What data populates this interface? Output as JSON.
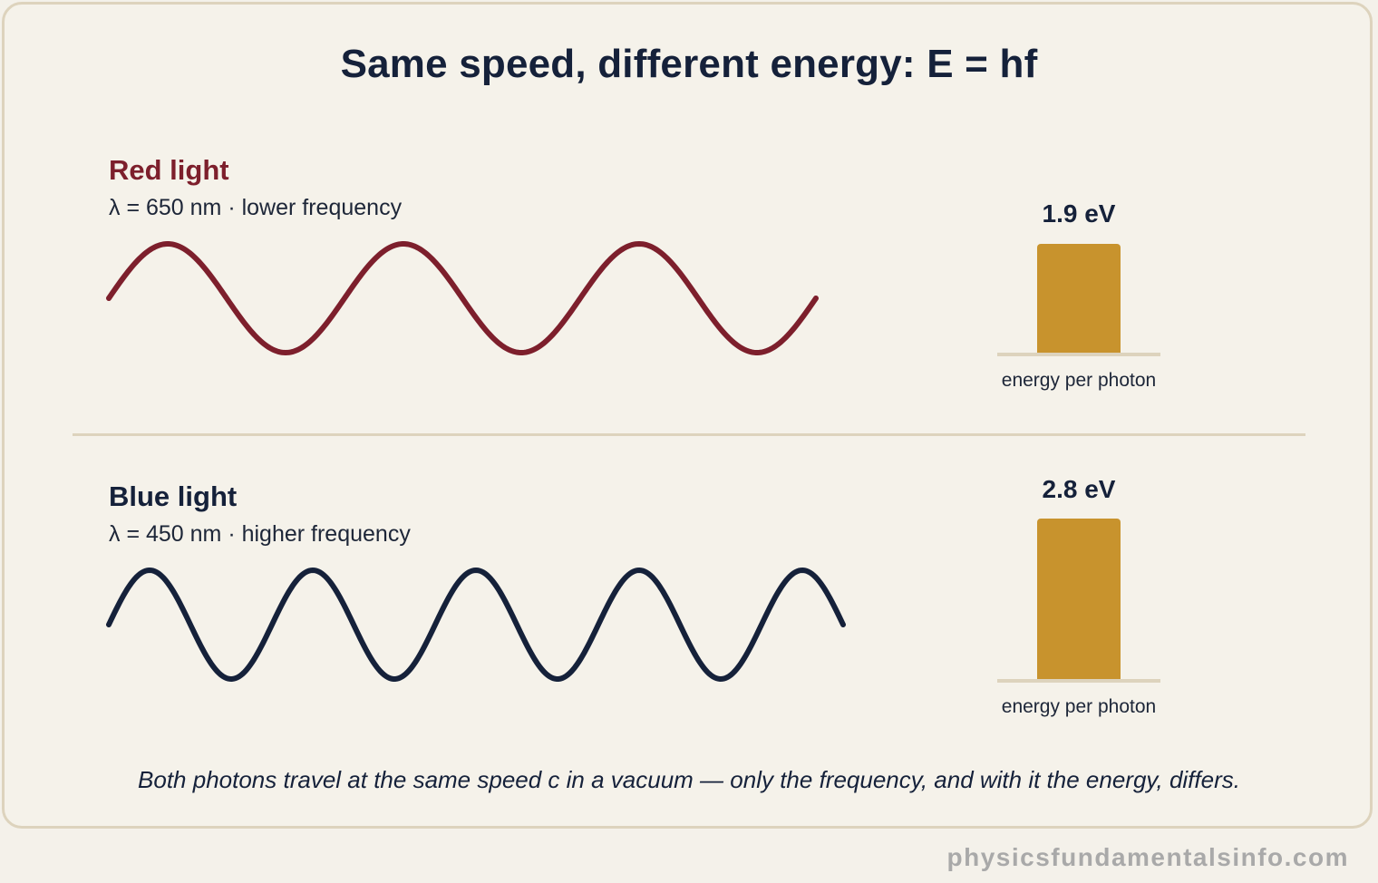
{
  "title": "Same speed, different energy: E = hf",
  "rows": [
    {
      "name": "Red light",
      "subtitle": "λ = 650 nm · lower frequency",
      "energy_label": "1.9 eV",
      "energy_ev": 1.9,
      "bar_caption": "energy per photon",
      "wave_color": "#7d1f2c",
      "wave_cycles": 3
    },
    {
      "name": "Blue light",
      "subtitle": "λ = 450 nm · higher frequency",
      "energy_label": "2.8 eV",
      "energy_ev": 2.8,
      "bar_caption": "energy per photon",
      "wave_color": "#15213a",
      "wave_cycles": 4.5
    }
  ],
  "bar_color": "#c8932d",
  "caption": "Both photons travel at the same speed c in a vacuum — only the frequency, and with it the energy, differs.",
  "watermark": "physicsfundamentalsinfo.com"
}
